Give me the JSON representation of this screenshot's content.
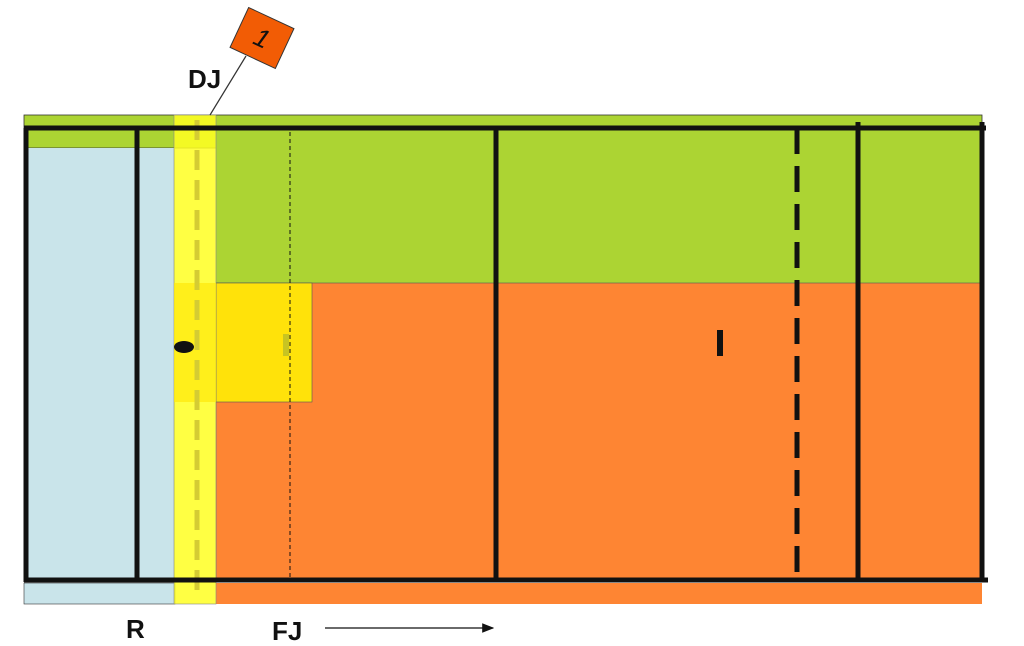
{
  "badge": {
    "label": "1"
  },
  "labels": {
    "dj": "DJ",
    "r": "R",
    "fj": "FJ"
  }
}
